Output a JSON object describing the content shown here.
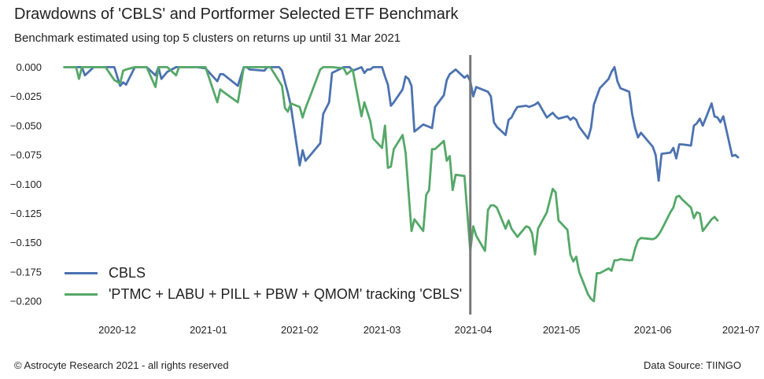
{
  "title": "Drawdowns of 'CBLS' and Portformer Selected ETF Benchmark",
  "subtitle": "Benchmark estimated using top 5 clusters on returns up until 31 Mar 2021",
  "footer": {
    "copyright": "© Astrocyte Research 2021 - all rights reserved",
    "source": "Data Source: TIINGO"
  },
  "colors": {
    "cbls": "#4c72b0",
    "benchmark": "#55a868",
    "cutoff": "#777777"
  },
  "chart_data": {
    "type": "line",
    "title": "Drawdowns of 'CBLS' and Portformer Selected ETF Benchmark",
    "xlabel": "",
    "ylabel": "",
    "xlim": [
      "2020-11-08",
      "2021-07-04"
    ],
    "ylim": [
      -0.21,
      0.009
    ],
    "x_ticks": [
      "2020-12-01",
      "2021-01-01",
      "2021-02-01",
      "2021-03-01",
      "2021-04-01",
      "2021-05-01",
      "2021-06-01",
      "2021-07-01"
    ],
    "x_tick_labels": [
      "2020-12",
      "2021-01",
      "2021-02",
      "2021-03",
      "2021-04",
      "2021-05",
      "2021-06",
      "2021-07"
    ],
    "y_ticks": [
      0.0,
      -0.025,
      -0.05,
      -0.075,
      -0.1,
      -0.125,
      -0.15,
      -0.175,
      -0.2
    ],
    "y_tick_labels": [
      "0.000",
      "−0.025",
      "−0.050",
      "−0.075",
      "−0.100",
      "−0.125",
      "−0.150",
      "−0.175",
      "−0.200"
    ],
    "grid": false,
    "legend_position": "lower-left",
    "vline": {
      "x": "2021-03-31"
    },
    "series": [
      {
        "name": "CBLS",
        "points": [
          [
            "2020-11-13",
            0.0
          ],
          [
            "2020-11-19",
            0.0
          ],
          [
            "2020-11-20",
            -0.007
          ],
          [
            "2020-11-23",
            0.0
          ],
          [
            "2020-11-30",
            0.0
          ],
          [
            "2020-12-01",
            -0.008
          ],
          [
            "2020-12-02",
            -0.016
          ],
          [
            "2020-12-03",
            -0.013
          ],
          [
            "2020-12-04",
            -0.015
          ],
          [
            "2020-12-07",
            0.0
          ],
          [
            "2020-12-11",
            0.0
          ],
          [
            "2020-12-14",
            -0.007
          ],
          [
            "2020-12-15",
            0.0
          ],
          [
            "2020-12-16",
            -0.01
          ],
          [
            "2020-12-18",
            -0.004
          ],
          [
            "2020-12-21",
            0.0
          ],
          [
            "2020-12-28",
            0.0
          ],
          [
            "2020-12-31",
            -0.001
          ],
          [
            "2021-01-04",
            -0.012
          ],
          [
            "2021-01-05",
            -0.006
          ],
          [
            "2021-01-06",
            -0.006
          ],
          [
            "2021-01-11",
            -0.016
          ],
          [
            "2021-01-13",
            0.0
          ],
          [
            "2021-01-14",
            0.0
          ],
          [
            "2021-01-15",
            -0.002
          ],
          [
            "2021-01-20",
            -0.003
          ],
          [
            "2021-01-21",
            0.0
          ],
          [
            "2021-01-25",
            0.0
          ],
          [
            "2021-01-26",
            -0.003
          ],
          [
            "2021-01-27",
            -0.013
          ],
          [
            "2021-01-28",
            -0.022
          ],
          [
            "2021-01-29",
            -0.033
          ],
          [
            "2021-02-01",
            -0.084
          ],
          [
            "2021-02-02",
            -0.071
          ],
          [
            "2021-02-03",
            -0.08
          ],
          [
            "2021-02-05",
            -0.074
          ],
          [
            "2021-02-08",
            -0.065
          ],
          [
            "2021-02-09",
            -0.04
          ],
          [
            "2021-02-11",
            -0.03
          ],
          [
            "2021-02-12",
            -0.005
          ],
          [
            "2021-02-16",
            0.0
          ],
          [
            "2021-02-17",
            0.0
          ],
          [
            "2021-02-18",
            0.0
          ],
          [
            "2021-02-19",
            -0.003
          ],
          [
            "2021-02-22",
            0.0
          ],
          [
            "2021-02-23",
            -0.005
          ],
          [
            "2021-02-24",
            -0.002
          ],
          [
            "2021-02-25",
            -0.002
          ],
          [
            "2021-02-26",
            0.0
          ],
          [
            "2021-03-01",
            0.0
          ],
          [
            "2021-03-02",
            -0.008
          ],
          [
            "2021-03-03",
            -0.015
          ],
          [
            "2021-03-04",
            -0.033
          ],
          [
            "2021-03-05",
            -0.03
          ],
          [
            "2021-03-08",
            -0.019
          ],
          [
            "2021-03-09",
            -0.008
          ],
          [
            "2021-03-10",
            -0.01
          ],
          [
            "2021-03-11",
            -0.016
          ],
          [
            "2021-03-12",
            -0.055
          ],
          [
            "2021-03-15",
            -0.049
          ],
          [
            "2021-03-16",
            -0.05
          ],
          [
            "2021-03-18",
            -0.052
          ],
          [
            "2021-03-19",
            -0.034
          ],
          [
            "2021-03-22",
            -0.024
          ],
          [
            "2021-03-23",
            -0.011
          ],
          [
            "2021-03-24",
            -0.006
          ],
          [
            "2021-03-25",
            -0.004
          ],
          [
            "2021-03-26",
            -0.002
          ],
          [
            "2021-03-29",
            -0.009
          ],
          [
            "2021-03-30",
            -0.007
          ],
          [
            "2021-03-31",
            -0.012
          ],
          [
            "2021-04-01",
            -0.025
          ],
          [
            "2021-04-02",
            -0.017
          ],
          [
            "2021-04-05",
            -0.02
          ],
          [
            "2021-04-06",
            -0.021
          ],
          [
            "2021-04-07",
            -0.025
          ],
          [
            "2021-04-08",
            -0.047
          ],
          [
            "2021-04-09",
            -0.051
          ],
          [
            "2021-04-12",
            -0.058
          ],
          [
            "2021-04-13",
            -0.045
          ],
          [
            "2021-04-14",
            -0.043
          ],
          [
            "2021-04-15",
            -0.038
          ],
          [
            "2021-04-16",
            -0.034
          ],
          [
            "2021-04-19",
            -0.033
          ],
          [
            "2021-04-20",
            -0.034
          ],
          [
            "2021-04-21",
            -0.033
          ],
          [
            "2021-04-22",
            -0.032
          ],
          [
            "2021-04-23",
            -0.03
          ],
          [
            "2021-04-26",
            -0.043
          ],
          [
            "2021-04-27",
            -0.041
          ],
          [
            "2021-04-28",
            -0.039
          ],
          [
            "2021-04-29",
            -0.042
          ],
          [
            "2021-04-30",
            -0.044
          ],
          [
            "2021-05-03",
            -0.042
          ],
          [
            "2021-05-04",
            -0.045
          ],
          [
            "2021-05-05",
            -0.043
          ],
          [
            "2021-05-06",
            -0.045
          ],
          [
            "2021-05-07",
            -0.051
          ],
          [
            "2021-05-10",
            -0.061
          ],
          [
            "2021-05-11",
            -0.052
          ],
          [
            "2021-05-12",
            -0.032
          ],
          [
            "2021-05-13",
            -0.025
          ],
          [
            "2021-05-14",
            -0.018
          ],
          [
            "2021-05-17",
            -0.01
          ],
          [
            "2021-05-18",
            -0.004
          ],
          [
            "2021-05-19",
            0.0
          ],
          [
            "2021-05-20",
            -0.012
          ],
          [
            "2021-05-21",
            -0.018
          ],
          [
            "2021-05-24",
            -0.021
          ],
          [
            "2021-05-25",
            -0.04
          ],
          [
            "2021-05-26",
            -0.052
          ],
          [
            "2021-05-27",
            -0.06
          ],
          [
            "2021-05-28",
            -0.056
          ],
          [
            "2021-06-01",
            -0.068
          ],
          [
            "2021-06-02",
            -0.075
          ],
          [
            "2021-06-03",
            -0.097
          ],
          [
            "2021-06-04",
            -0.074
          ],
          [
            "2021-06-07",
            -0.073
          ],
          [
            "2021-06-08",
            -0.069
          ],
          [
            "2021-06-09",
            -0.078
          ],
          [
            "2021-06-10",
            -0.066
          ],
          [
            "2021-06-11",
            -0.066
          ],
          [
            "2021-06-14",
            -0.067
          ],
          [
            "2021-06-15",
            -0.05
          ],
          [
            "2021-06-16",
            -0.048
          ],
          [
            "2021-06-17",
            -0.044
          ],
          [
            "2021-06-18",
            -0.05
          ],
          [
            "2021-06-21",
            -0.031
          ],
          [
            "2021-06-22",
            -0.042
          ],
          [
            "2021-06-23",
            -0.043
          ],
          [
            "2021-06-24",
            -0.047
          ],
          [
            "2021-06-25",
            -0.042
          ],
          [
            "2021-06-28",
            -0.076
          ],
          [
            "2021-06-29",
            -0.075
          ],
          [
            "2021-06-30",
            -0.077
          ]
        ]
      },
      {
        "name": "'PTMC + LABU + PILL + PBW + QMOM' tracking 'CBLS'",
        "points": [
          [
            "2020-11-13",
            0.0
          ],
          [
            "2020-11-17",
            0.0
          ],
          [
            "2020-11-18",
            -0.01
          ],
          [
            "2020-11-19",
            0.0
          ],
          [
            "2020-11-27",
            0.0
          ],
          [
            "2020-11-30",
            -0.011
          ],
          [
            "2020-12-02",
            -0.014
          ],
          [
            "2020-12-03",
            -0.003
          ],
          [
            "2020-12-04",
            -0.002
          ],
          [
            "2020-12-07",
            0.0
          ],
          [
            "2020-12-11",
            0.0
          ],
          [
            "2020-12-14",
            -0.017
          ],
          [
            "2020-12-15",
            0.0
          ],
          [
            "2020-12-18",
            0.0
          ],
          [
            "2020-12-21",
            -0.007
          ],
          [
            "2020-12-22",
            0.0
          ],
          [
            "2020-12-31",
            0.0
          ],
          [
            "2021-01-04",
            -0.03
          ],
          [
            "2021-01-05",
            -0.019
          ],
          [
            "2021-01-06",
            -0.021
          ],
          [
            "2021-01-11",
            -0.03
          ],
          [
            "2021-01-13",
            0.0
          ],
          [
            "2021-01-15",
            0.0
          ],
          [
            "2021-01-20",
            0.0
          ],
          [
            "2021-01-22",
            0.0
          ],
          [
            "2021-01-26",
            -0.016
          ],
          [
            "2021-01-27",
            -0.035
          ],
          [
            "2021-01-28",
            -0.038
          ],
          [
            "2021-01-29",
            -0.031
          ],
          [
            "2021-02-01",
            -0.034
          ],
          [
            "2021-02-02",
            -0.043
          ],
          [
            "2021-02-03",
            -0.035
          ],
          [
            "2021-02-05",
            -0.022
          ],
          [
            "2021-02-08",
            -0.002
          ],
          [
            "2021-02-09",
            0.0
          ],
          [
            "2021-02-11",
            0.0
          ],
          [
            "2021-02-12",
            0.0
          ],
          [
            "2021-02-16",
            -0.001
          ],
          [
            "2021-02-17",
            -0.006
          ],
          [
            "2021-02-18",
            -0.004
          ],
          [
            "2021-02-19",
            -0.002
          ],
          [
            "2021-02-22",
            -0.042
          ],
          [
            "2021-02-23",
            -0.03
          ],
          [
            "2021-02-25",
            -0.046
          ],
          [
            "2021-02-26",
            -0.061
          ],
          [
            "2021-03-01",
            -0.069
          ],
          [
            "2021-03-02",
            -0.05
          ],
          [
            "2021-03-03",
            -0.086
          ],
          [
            "2021-03-04",
            -0.085
          ],
          [
            "2021-03-05",
            -0.07
          ],
          [
            "2021-03-08",
            -0.058
          ],
          [
            "2021-03-09",
            -0.073
          ],
          [
            "2021-03-11",
            -0.14
          ],
          [
            "2021-03-12",
            -0.13
          ],
          [
            "2021-03-15",
            -0.14
          ],
          [
            "2021-03-16",
            -0.109
          ],
          [
            "2021-03-17",
            -0.105
          ],
          [
            "2021-03-18",
            -0.07
          ],
          [
            "2021-03-19",
            -0.07
          ],
          [
            "2021-03-22",
            -0.063
          ],
          [
            "2021-03-23",
            -0.08
          ],
          [
            "2021-03-24",
            -0.076
          ],
          [
            "2021-03-25",
            -0.105
          ],
          [
            "2021-03-26",
            -0.092
          ],
          [
            "2021-03-29",
            -0.093
          ],
          [
            "2021-03-31",
            -0.157
          ],
          [
            "2021-04-01",
            -0.136
          ],
          [
            "2021-04-02",
            -0.144
          ],
          [
            "2021-04-05",
            -0.157
          ],
          [
            "2021-04-06",
            -0.122
          ],
          [
            "2021-04-07",
            -0.118
          ],
          [
            "2021-04-08",
            -0.118
          ],
          [
            "2021-04-09",
            -0.12
          ],
          [
            "2021-04-12",
            -0.138
          ],
          [
            "2021-04-13",
            -0.131
          ],
          [
            "2021-04-14",
            -0.138
          ],
          [
            "2021-04-16",
            -0.145
          ],
          [
            "2021-04-19",
            -0.136
          ],
          [
            "2021-04-20",
            -0.137
          ],
          [
            "2021-04-21",
            -0.142
          ],
          [
            "2021-04-22",
            -0.16
          ],
          [
            "2021-04-23",
            -0.138
          ],
          [
            "2021-04-26",
            -0.124
          ],
          [
            "2021-04-28",
            -0.104
          ],
          [
            "2021-04-29",
            -0.107
          ],
          [
            "2021-04-30",
            -0.131
          ],
          [
            "2021-05-03",
            -0.139
          ],
          [
            "2021-05-04",
            -0.16
          ],
          [
            "2021-05-05",
            -0.166
          ],
          [
            "2021-05-06",
            -0.162
          ],
          [
            "2021-05-07",
            -0.175
          ],
          [
            "2021-05-10",
            -0.194
          ],
          [
            "2021-05-11",
            -0.198
          ],
          [
            "2021-05-12",
            -0.2
          ],
          [
            "2021-05-13",
            -0.176
          ],
          [
            "2021-05-14",
            -0.176
          ],
          [
            "2021-05-17",
            -0.172
          ],
          [
            "2021-05-18",
            -0.174
          ],
          [
            "2021-05-19",
            -0.165
          ],
          [
            "2021-05-20",
            -0.165
          ],
          [
            "2021-05-21",
            -0.164
          ],
          [
            "2021-05-24",
            -0.165
          ],
          [
            "2021-05-25",
            -0.165
          ],
          [
            "2021-05-26",
            -0.155
          ],
          [
            "2021-05-27",
            -0.148
          ],
          [
            "2021-05-28",
            -0.146
          ],
          [
            "2021-06-01",
            -0.147
          ],
          [
            "2021-06-02",
            -0.146
          ],
          [
            "2021-06-03",
            -0.143
          ],
          [
            "2021-06-04",
            -0.139
          ],
          [
            "2021-06-07",
            -0.124
          ],
          [
            "2021-06-08",
            -0.12
          ],
          [
            "2021-06-09",
            -0.111
          ],
          [
            "2021-06-10",
            -0.11
          ],
          [
            "2021-06-11",
            -0.113
          ],
          [
            "2021-06-14",
            -0.12
          ],
          [
            "2021-06-15",
            -0.129
          ],
          [
            "2021-06-16",
            -0.124
          ],
          [
            "2021-06-17",
            -0.125
          ],
          [
            "2021-06-18",
            -0.14
          ],
          [
            "2021-06-21",
            -0.13
          ],
          [
            "2021-06-22",
            -0.128
          ],
          [
            "2021-06-23",
            -0.131
          ]
        ]
      }
    ]
  }
}
